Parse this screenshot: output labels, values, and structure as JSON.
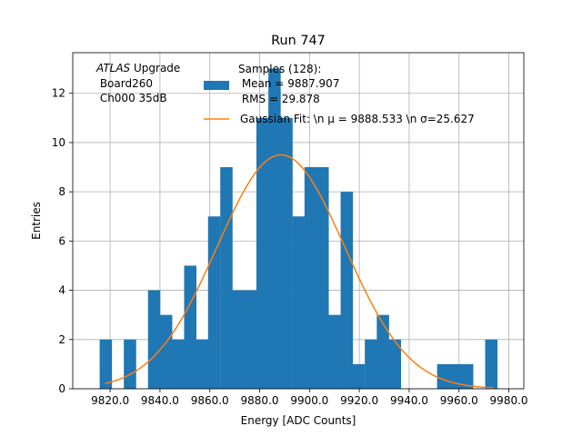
{
  "chart_data": {
    "type": "bar",
    "title": "Run 747",
    "xlabel": "Energy [ADC Counts]",
    "ylabel": "Entries",
    "xlim": [
      9805,
      9986
    ],
    "ylim": [
      0,
      13.65
    ],
    "grid": true,
    "x_ticks": [
      9820,
      9840,
      9860,
      9880,
      9900,
      9920,
      9940,
      9960,
      9980
    ],
    "x_tick_labels": [
      "9820.0",
      "9840.0",
      "9860.0",
      "9880.0",
      "9900.0",
      "9920.0",
      "9940.0",
      "9960.0",
      "9980.0"
    ],
    "y_ticks": [
      0,
      2,
      4,
      6,
      8,
      10,
      12
    ],
    "y_tick_labels": [
      "0",
      "2",
      "4",
      "6",
      "8",
      "10",
      "12"
    ],
    "bin_width": 4.83,
    "bins": [
      {
        "x": 9815.8,
        "value": 2
      },
      {
        "x": 9825.5,
        "value": 2
      },
      {
        "x": 9835.2,
        "value": 4
      },
      {
        "x": 9840.0,
        "value": 3
      },
      {
        "x": 9844.8,
        "value": 2
      },
      {
        "x": 9849.7,
        "value": 5
      },
      {
        "x": 9854.5,
        "value": 2
      },
      {
        "x": 9859.3,
        "value": 7
      },
      {
        "x": 9864.2,
        "value": 9
      },
      {
        "x": 9869.0,
        "value": 4
      },
      {
        "x": 9873.8,
        "value": 4
      },
      {
        "x": 9878.7,
        "value": 11
      },
      {
        "x": 9883.5,
        "value": 13
      },
      {
        "x": 9888.3,
        "value": 11
      },
      {
        "x": 9893.2,
        "value": 7
      },
      {
        "x": 9898.0,
        "value": 9
      },
      {
        "x": 9902.8,
        "value": 9
      },
      {
        "x": 9907.7,
        "value": 3
      },
      {
        "x": 9912.5,
        "value": 8
      },
      {
        "x": 9917.3,
        "value": 1
      },
      {
        "x": 9922.2,
        "value": 2
      },
      {
        "x": 9927.0,
        "value": 3
      },
      {
        "x": 9931.8,
        "value": 2
      },
      {
        "x": 9951.2,
        "value": 1
      },
      {
        "x": 9956.0,
        "value": 1
      },
      {
        "x": 9960.8,
        "value": 1
      },
      {
        "x": 9970.5,
        "value": 2
      }
    ],
    "fit": {
      "mu": 9888.533,
      "sigma": 25.627,
      "amplitude": 9.5,
      "x_range": [
        9818,
        9974
      ]
    },
    "series_colors": {
      "histogram": "#1f77b4",
      "fit": "#ff7f0e"
    },
    "annotation": {
      "line1_italic": "ATLAS",
      "line1_rest": " Upgrade",
      "line2": " Board260",
      "line3": " Ch000 35dB"
    },
    "legend": {
      "placement": "top-right",
      "hist_line1": "Samples (128):",
      "hist_line2": " Mean = 9887.907",
      "hist_line3": " RMS = 29.878",
      "fit_label": "Gaussian Fit: \\n μ = 9888.533 \\n σ=25.627"
    }
  }
}
